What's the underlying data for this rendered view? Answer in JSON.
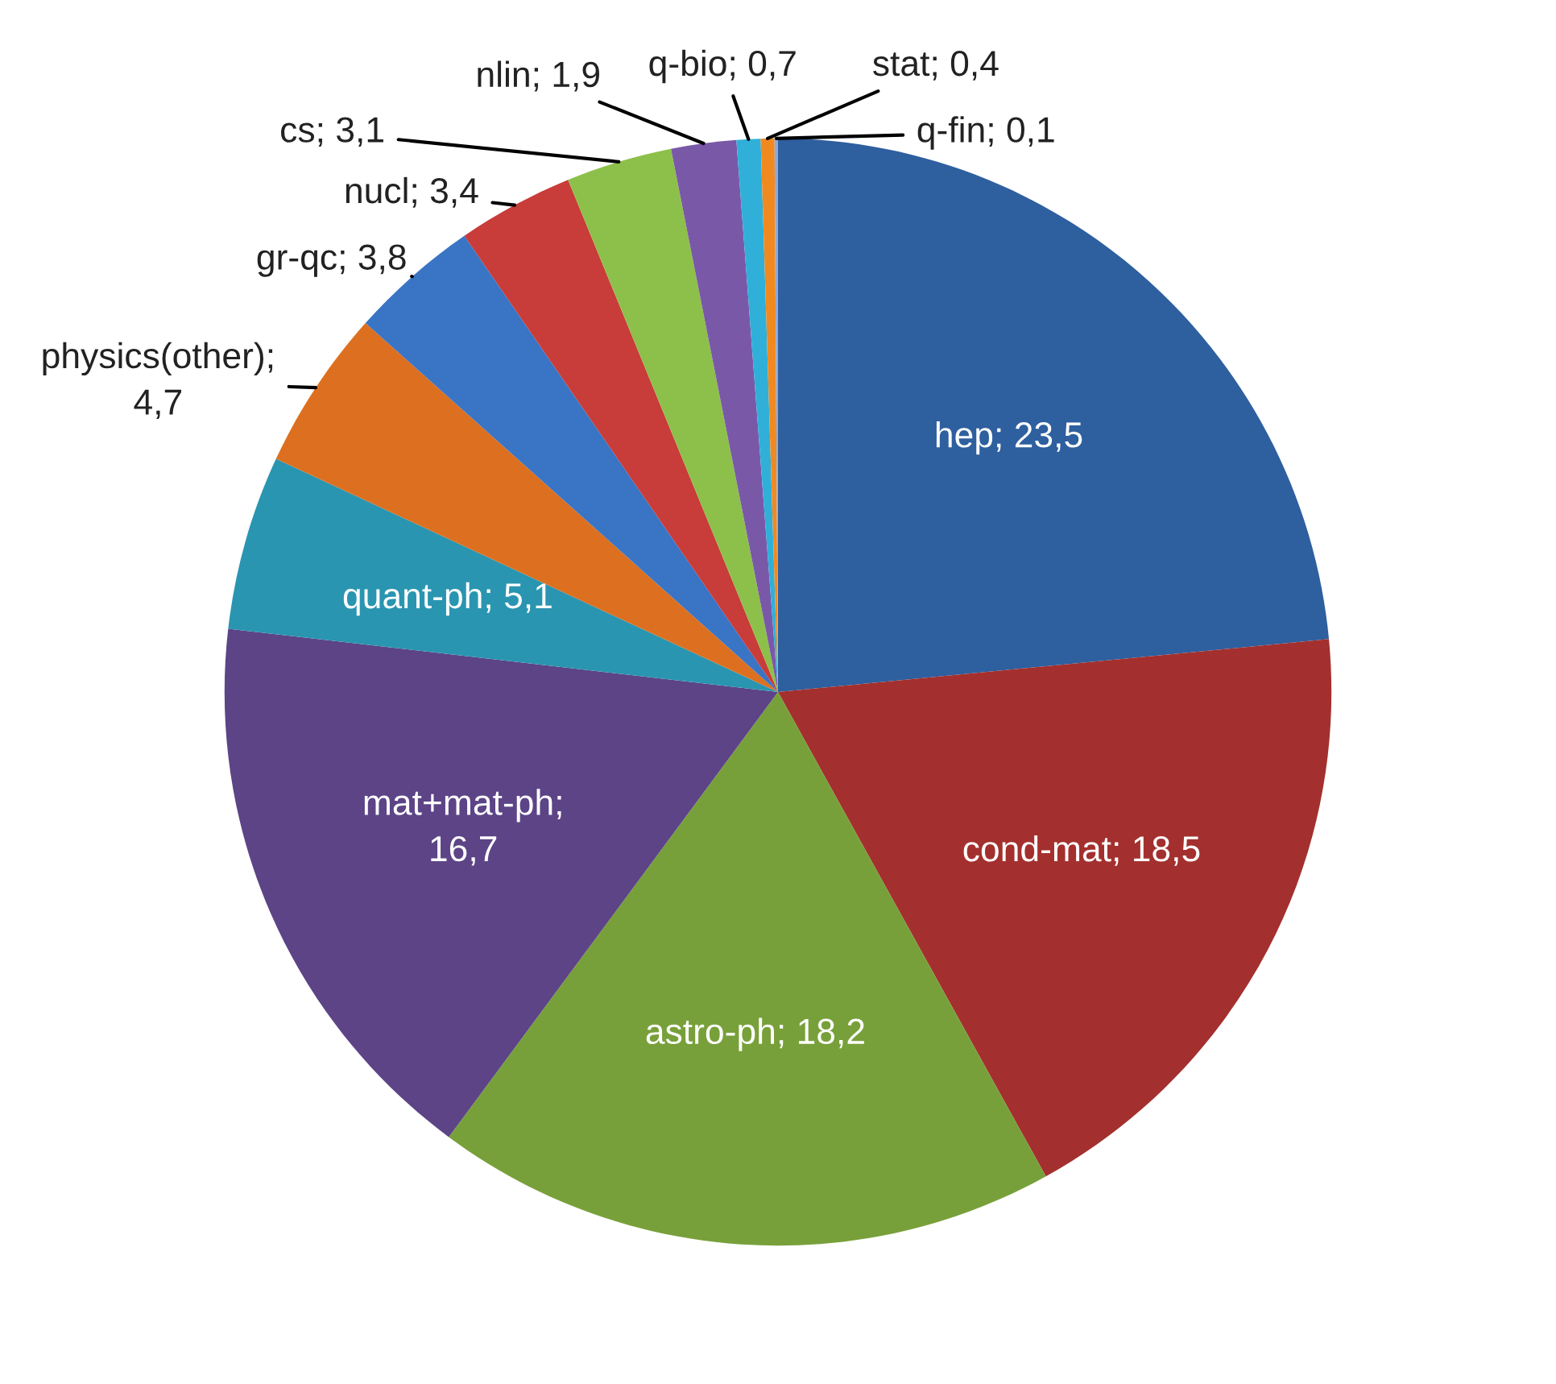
{
  "chart_data": {
    "type": "pie",
    "categories": [
      "hep",
      "cond-mat",
      "astro-ph",
      "mat+mat-ph",
      "quant-ph",
      "physics(other)",
      "gr-qc",
      "nucl",
      "cs",
      "nlin",
      "q-bio",
      "stat",
      "q-fin"
    ],
    "values": [
      23.5,
      18.5,
      18.2,
      16.7,
      5.1,
      4.7,
      3.8,
      3.4,
      3.1,
      1.9,
      0.7,
      0.4,
      0.1
    ],
    "colors": [
      "#2e5f9f",
      "#a3302e",
      "#78a03a",
      "#5c4486",
      "#2a95b0",
      "#dc7020",
      "#3a74c4",
      "#c83c3a",
      "#8dc04a",
      "#7a58a8",
      "#30b0d8",
      "#f08a20",
      "#8faad8"
    ],
    "value_labels": [
      "; 23,5",
      "; 18,5",
      "; 18,2",
      ";\n16,7",
      "; 5,1",
      ";\n4,7",
      "; 3,8",
      "; 3,4",
      "; 3,1",
      "; 1,9",
      "; 0,7",
      "; 0,4",
      "; 0,1"
    ],
    "legend": false
  }
}
